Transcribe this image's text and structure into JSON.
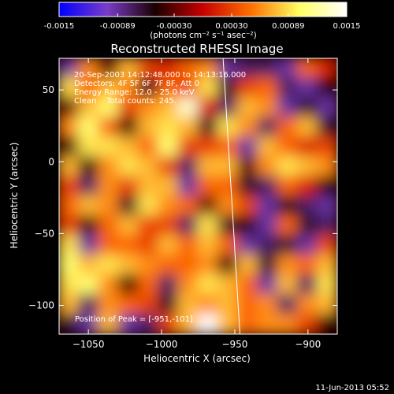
{
  "chart_data": {
    "type": "heatmap",
    "title": "Reconstructed RHESSI Image",
    "xlabel": "Heliocentric X (arcsec)",
    "ylabel": "Heliocentric Y (arcsec)",
    "x_ticks": [
      -1050,
      -1000,
      -950,
      -900
    ],
    "y_ticks": [
      -100,
      -50,
      0,
      50
    ],
    "xlim": [
      -1070,
      -880
    ],
    "ylim": [
      -120,
      72
    ],
    "colorbar": {
      "min": -0.0015,
      "max": 0.0015,
      "tick_values": [
        -0.0015,
        -0.00089,
        -0.0003,
        0.0003,
        0.00089,
        0.0015
      ],
      "tick_labels": [
        "-0.0015",
        "-0.00089",
        "-0.00030",
        "0.00030",
        "0.00089",
        "0.0015"
      ],
      "unit_label": "(photons cm⁻² s⁻¹ asec⁻²)",
      "colors": [
        "#0000ff",
        "#7a3cc8",
        "#1a0000",
        "#c80000",
        "#ff7000",
        "#ffff60",
        "#ffffff"
      ]
    },
    "annotations": [
      "20-Sep-2003 14:12:48.000 to 14:13:16.000",
      "Detectors: 4F 5F 6F 7F 8F, Att 0",
      "Energy Range: 12.0 - 25.0 keV",
      "Clean    Total counts: 245."
    ],
    "peak_label": "Position of Peak = [-951,-101]",
    "peak": {
      "x": -951,
      "y": -101
    },
    "grid_values": [
      [
        -0.6,
        0.4,
        -0.2,
        0.5,
        0.2,
        0.1,
        0.3,
        0.4,
        -0.6,
        -0.5,
        -0.5,
        -0.6,
        0.3,
        0.1
      ],
      [
        0.6,
        0.3,
        0.5,
        0.4,
        -0.4,
        0.3,
        0.2,
        0.6,
        -0.4,
        0.2,
        0.3,
        -0.5,
        -0.6,
        -0.3
      ],
      [
        -0.2,
        0.5,
        0.7,
        0.2,
        0.4,
        0.5,
        0.9,
        0.1,
        -0.5,
        0.5,
        0.4,
        -0.6,
        -0.4,
        -0.6
      ],
      [
        0.4,
        0.7,
        0.3,
        -0.3,
        0.5,
        0.6,
        0.5,
        -0.4,
        0.6,
        0.4,
        -0.5,
        0.3,
        0.5,
        -0.4
      ],
      [
        -0.3,
        0.6,
        0.6,
        0.5,
        0.3,
        0.7,
        0.2,
        0.2,
        0.3,
        -0.6,
        0.5,
        0.3,
        0.1,
        0.2
      ],
      [
        0.5,
        -0.3,
        0.4,
        0.6,
        0.5,
        0.2,
        -0.5,
        0.5,
        0.5,
        -0.2,
        0.4,
        0.6,
        0.5,
        0.4
      ],
      [
        0.2,
        -0.5,
        0.4,
        0.2,
        0.5,
        0.5,
        -0.6,
        0.3,
        0.3,
        -0.4,
        -0.5,
        0.3,
        0.1,
        -0.3
      ],
      [
        0.3,
        0.5,
        0.4,
        -0.4,
        0.6,
        0.4,
        0.3,
        -0.2,
        0.4,
        0.2,
        -0.6,
        -0.3,
        -0.5,
        -0.6
      ],
      [
        0.2,
        -0.3,
        0.3,
        0.5,
        0.2,
        0.2,
        -0.5,
        0.6,
        -0.4,
        -0.3,
        -0.6,
        0.3,
        -0.4,
        -0.5
      ],
      [
        0.6,
        -0.6,
        0.3,
        0.3,
        0.2,
        0.5,
        0.3,
        0.5,
        0.3,
        -0.6,
        -0.5,
        -0.4,
        -0.6,
        0.2
      ],
      [
        0.7,
        0.5,
        0.6,
        0.5,
        0.4,
        0.3,
        0.3,
        0.4,
        -0.3,
        0.5,
        -0.4,
        0.4,
        0.3,
        0.5
      ],
      [
        0.6,
        0.7,
        0.4,
        -0.3,
        0.3,
        -0.5,
        0.4,
        0.6,
        0.5,
        0.3,
        -0.6,
        0.5,
        -0.5,
        0.6
      ],
      [
        0.5,
        -0.5,
        0.4,
        0.3,
        0.2,
        -0.4,
        0.5,
        0.4,
        0.5,
        0.3,
        0.4,
        -0.5,
        0.4,
        0.5
      ],
      [
        -0.4,
        -0.6,
        0.5,
        -0.6,
        -0.5,
        0.2,
        0.5,
        1.0,
        0.5,
        0.3,
        0.4,
        0.4,
        0.2,
        -0.3
      ]
    ]
  },
  "footer": {
    "timestamp": "11-Jun-2013 05:52"
  }
}
